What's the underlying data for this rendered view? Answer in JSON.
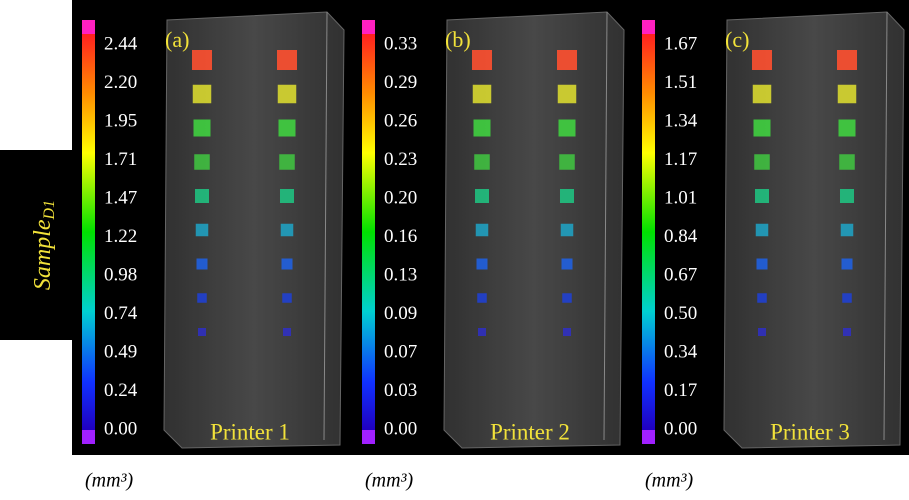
{
  "row_label": {
    "text": "Sample",
    "subscript": "D1"
  },
  "panels": [
    {
      "label": "(a)",
      "scale_ticks": [
        "2.44",
        "2.20",
        "1.95",
        "1.71",
        "1.47",
        "1.22",
        "0.98",
        "0.74",
        "0.49",
        "0.24",
        "0.00"
      ],
      "printer": "Printer 1",
      "unit": "(mm³)"
    },
    {
      "label": "(b)",
      "scale_ticks": [
        "0.33",
        "0.29",
        "0.26",
        "0.23",
        "0.20",
        "0.16",
        "0.13",
        "0.09",
        "0.07",
        "0.03",
        "0.00"
      ],
      "printer": "Printer 2",
      "unit": "(mm³)"
    },
    {
      "label": "(c)",
      "scale_ticks": [
        "1.67",
        "1.51",
        "1.34",
        "1.17",
        "1.01",
        "0.84",
        "0.67",
        "0.50",
        "0.34",
        "0.17",
        "0.00"
      ],
      "printer": "Printer 3",
      "unit": "(mm³)"
    }
  ]
}
